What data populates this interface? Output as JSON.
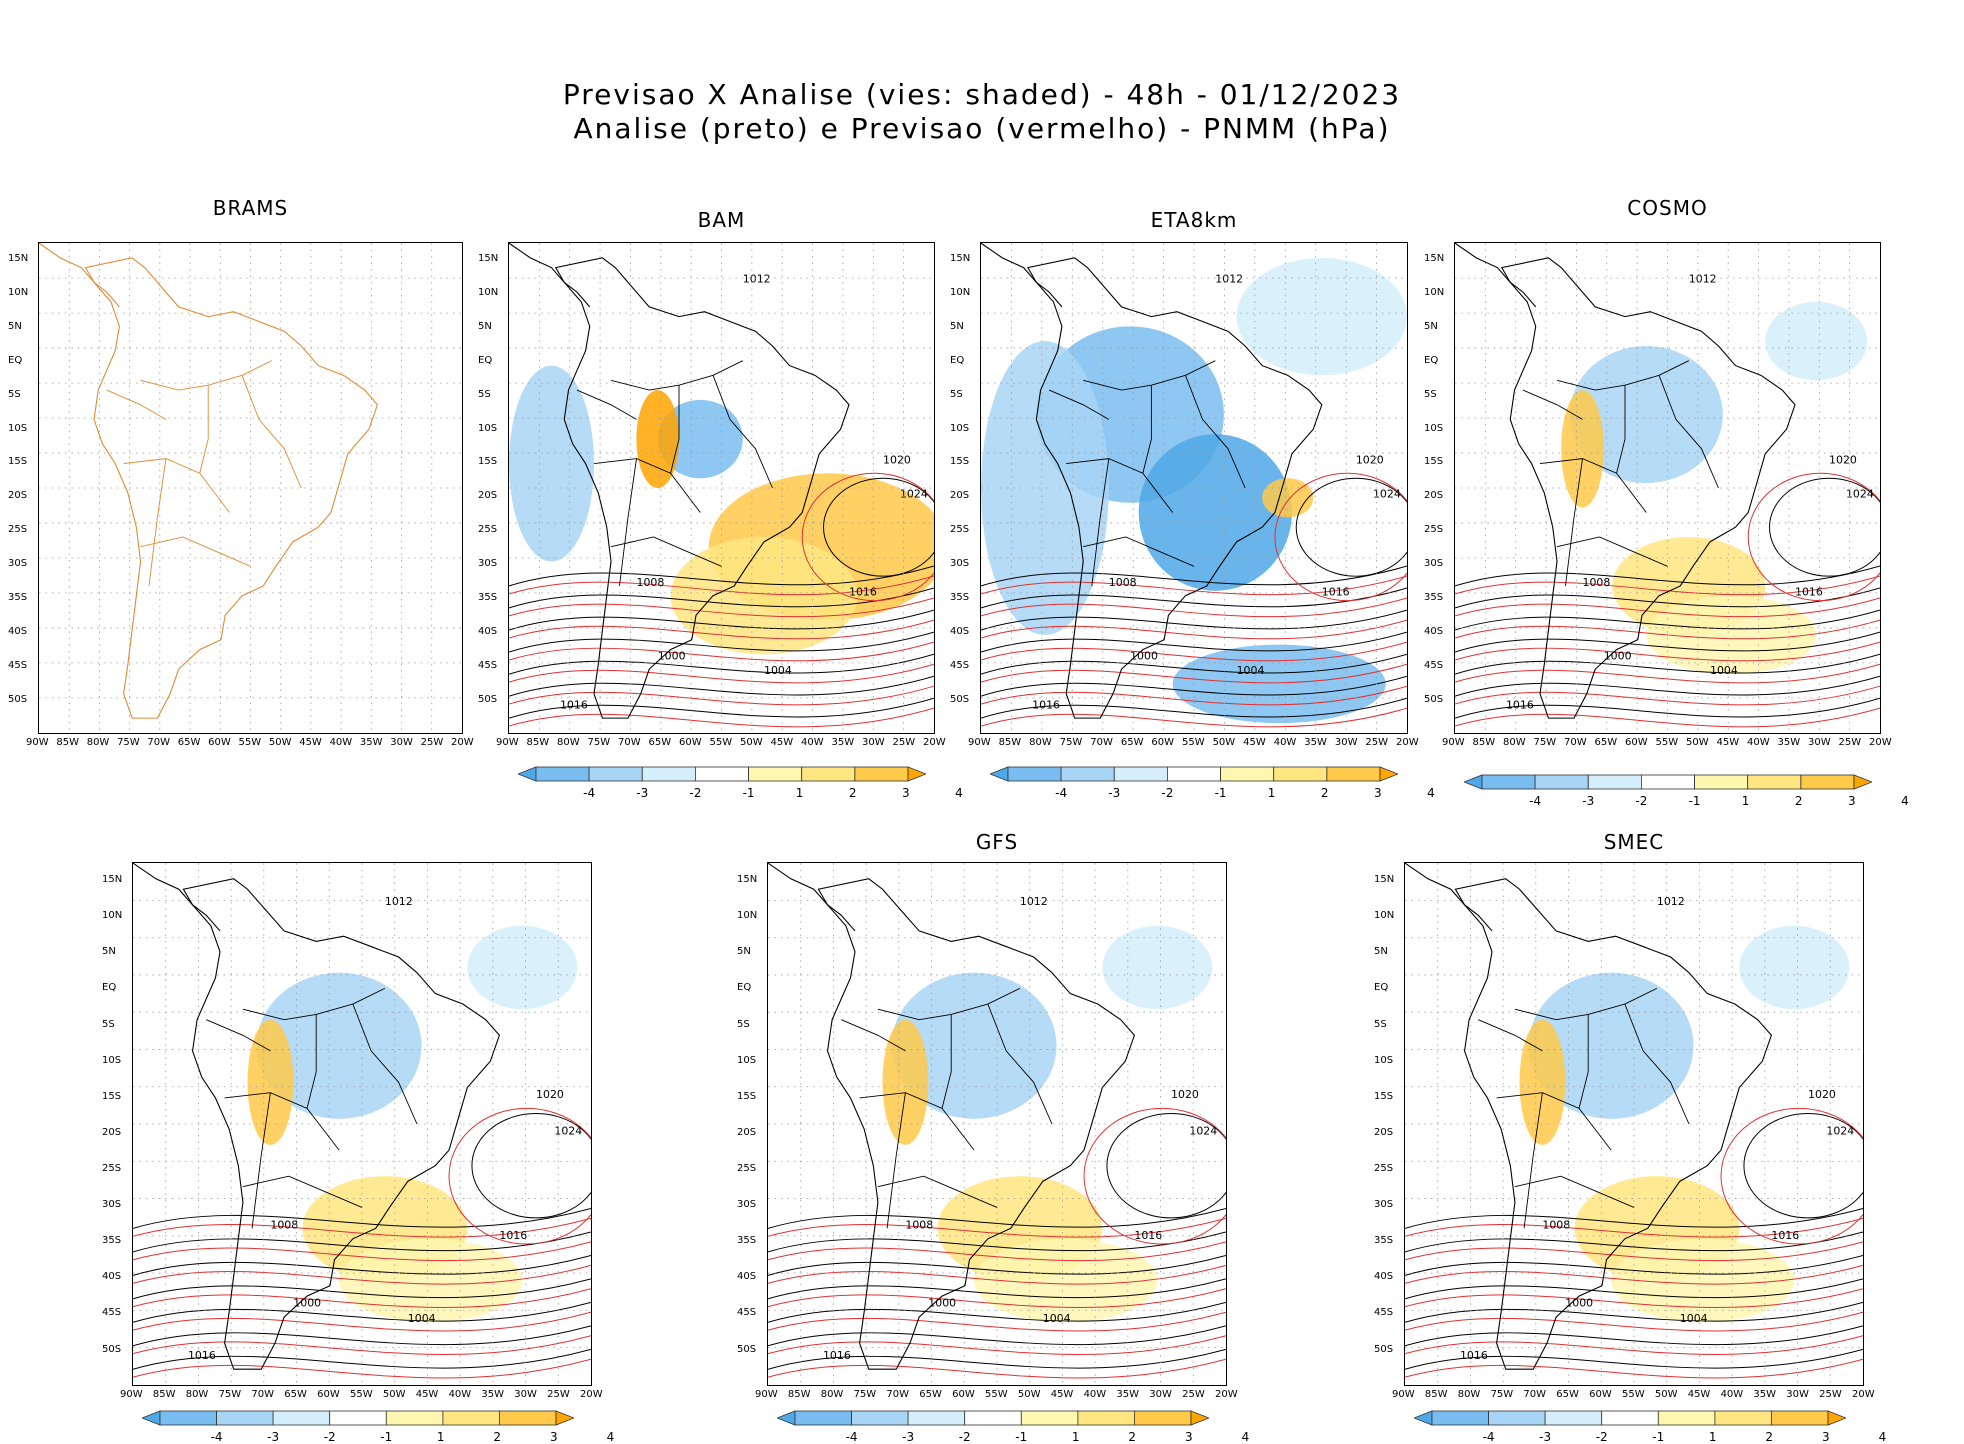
{
  "header": {
    "line1": "Previsao X Analise (vies: shaded) - 48h - 01/12/2023",
    "line2": "Analise (preto) e Previsao (vermelho) - PNMM (hPa)"
  },
  "axes": {
    "lat_labels": [
      "15N",
      "10N",
      "5N",
      "EQ",
      "5S",
      "10S",
      "15S",
      "20S",
      "25S",
      "30S",
      "35S",
      "40S",
      "45S",
      "50S"
    ],
    "lon_labels": [
      "90W",
      "85W",
      "80W",
      "75W",
      "70W",
      "65W",
      "60W",
      "55W",
      "50W",
      "45W",
      "40W",
      "35W",
      "30W",
      "25W",
      "20W"
    ]
  },
  "colorbar": {
    "labels": [
      "-4",
      "-3",
      "-2",
      "-1",
      "1",
      "2",
      "3",
      "4"
    ],
    "colors": [
      "#4fa8e8",
      "#79bdf0",
      "#a8d5f6",
      "#d4eefc",
      "#ffffff",
      "#fff6b0",
      "#ffe680",
      "#ffc94a",
      "#ffa500"
    ]
  },
  "panels": [
    {
      "title": "BRAMS",
      "has_colorbar": false,
      "has_data": false
    },
    {
      "title": "BAM",
      "has_colorbar": true,
      "has_data": true
    },
    {
      "title": "ETA8km",
      "has_colorbar": true,
      "has_data": true
    },
    {
      "title": "COSMO",
      "has_colorbar": true,
      "has_data": true
    },
    {
      "title": "",
      "has_colorbar": true,
      "has_data": true
    },
    {
      "title": "GFS",
      "has_colorbar": true,
      "has_data": true
    },
    {
      "title": "SMEC",
      "has_colorbar": true,
      "has_data": true
    }
  ],
  "isobar_labels": [
    "1016",
    "1012",
    "1008",
    "1004",
    "1000",
    "1020",
    "1024"
  ],
  "colors": {
    "analysis_contour": "#000000",
    "forecast_contour": "#e03030",
    "brams_coast": "#e08a30",
    "grid": "#999999"
  }
}
